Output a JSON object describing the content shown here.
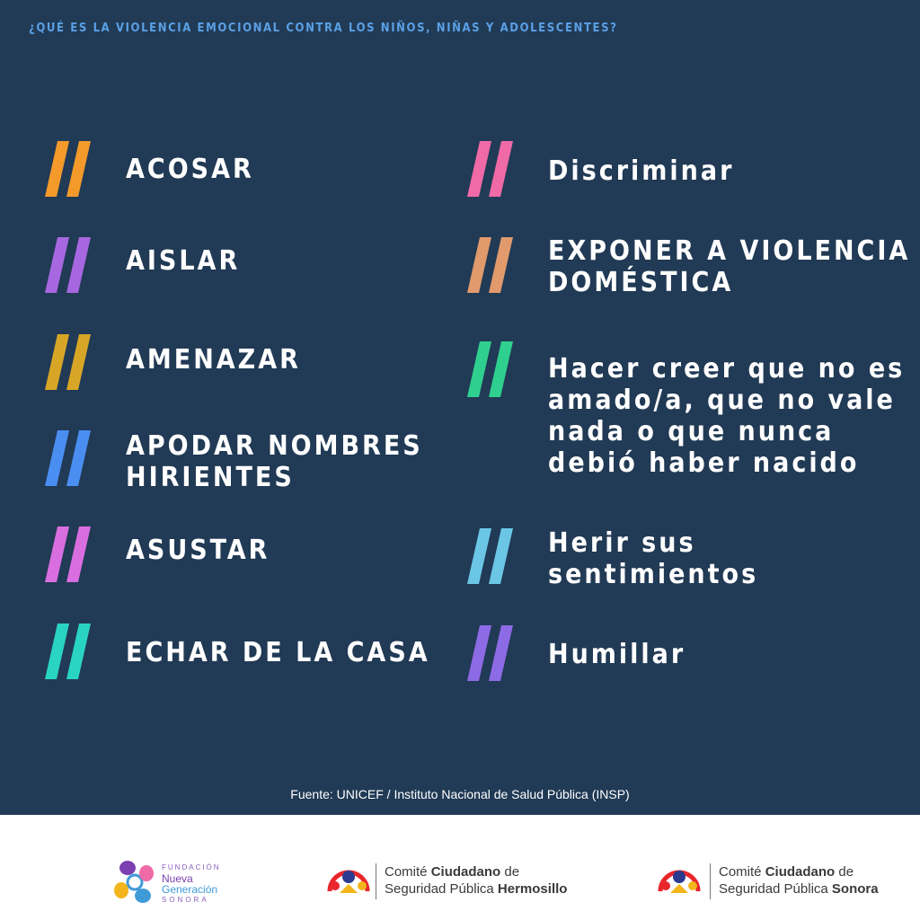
{
  "header": {
    "title": "¿QUÉ ES LA VIOLENCIA EMOCIONAL CONTRA LOS NIÑOS, NIÑAS Y ADOLESCENTES?"
  },
  "items_left": [
    {
      "lines": [
        "ACOSAR"
      ],
      "color": "#f39a2b"
    },
    {
      "lines": [
        "AISLAR"
      ],
      "color": "#a767e0"
    },
    {
      "lines": [
        "AMENAZAR"
      ],
      "color": "#d8a626"
    },
    {
      "lines": [
        "APODAR NOMBRES",
        "HIRIENTES"
      ],
      "color": "#4b8ef2"
    },
    {
      "lines": [
        "ASUSTAR"
      ],
      "color": "#d96ee0"
    },
    {
      "lines": [
        "ECHAR DE LA CASA"
      ],
      "color": "#2ad4c3"
    }
  ],
  "items_right": [
    {
      "lines": [
        "Discriminar"
      ],
      "color": "#ef6aa6"
    },
    {
      "lines": [
        "EXPONER A VIOLENCIA",
        "DOMÉSTICA"
      ],
      "color": "#e09a6c"
    },
    {
      "lines": [
        "Hacer creer que no es",
        "amado/a, que no vale",
        "nada o que nunca",
        "debió haber nacido"
      ],
      "color": "#2fd08f"
    },
    {
      "lines": [
        "Herir sus",
        "sentimientos"
      ],
      "color": "#6bc6e6"
    },
    {
      "lines": [
        "Humillar"
      ],
      "color": "#8d6ae6"
    }
  ],
  "source": "Fuente: UNICEF / Instituto Nacional de Salud Pública (INSP)",
  "footer": {
    "fundacion": {
      "line1": "FUNDACIÓN",
      "line2": "Nueva",
      "line3": "Generación",
      "line4": "SONORA"
    },
    "hermosillo": {
      "prefix": "Comité ",
      "bold1": "Ciudadano",
      "suffix": " de",
      "line2": "Seguridad Pública ",
      "bold2": "Hermosillo"
    },
    "sonora": {
      "prefix": "Comité ",
      "bold1": "Ciudadano",
      "suffix": " de",
      "line2": "Seguridad Pública ",
      "bold2": "Sonora"
    }
  }
}
